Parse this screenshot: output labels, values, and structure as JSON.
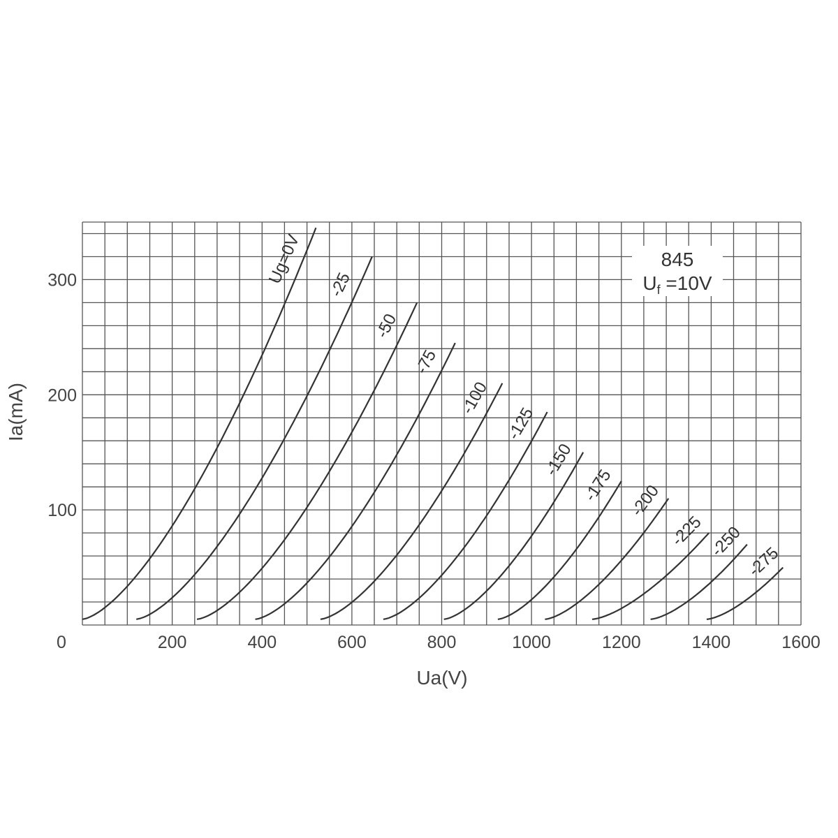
{
  "chart_data": {
    "type": "line",
    "title": "",
    "xlabel": "Ua(V)",
    "ylabel": "Ia(mA)",
    "xlim": [
      0,
      1600
    ],
    "ylim": [
      0,
      350
    ],
    "grid": true,
    "x_ticks": [
      "0",
      "200",
      "400",
      "600",
      "800",
      "1000",
      "1200",
      "1400",
      "1600"
    ],
    "y_ticks": [
      "100",
      "200",
      "300"
    ],
    "annotation": {
      "tube": "845",
      "filament_prefix": "U",
      "filament_sub": "f",
      "filament_value": " =10V"
    },
    "series": [
      {
        "name": "Ug=0V",
        "x0": 0,
        "x1": 520,
        "y1": 345
      },
      {
        "name": "-25",
        "x0": 120,
        "x1": 645,
        "y1": 320
      },
      {
        "name": "-50",
        "x0": 255,
        "x1": 745,
        "y1": 280
      },
      {
        "name": "-75",
        "x0": 385,
        "x1": 830,
        "y1": 245
      },
      {
        "name": "-100",
        "x0": 530,
        "x1": 935,
        "y1": 210
      },
      {
        "name": "-125",
        "x0": 670,
        "x1": 1035,
        "y1": 185
      },
      {
        "name": "-150",
        "x0": 805,
        "x1": 1115,
        "y1": 150
      },
      {
        "name": "-175",
        "x0": 925,
        "x1": 1200,
        "y1": 125
      },
      {
        "name": "-200",
        "x0": 1030,
        "x1": 1305,
        "y1": 110
      },
      {
        "name": "-225",
        "x0": 1135,
        "x1": 1395,
        "y1": 80
      },
      {
        "name": "-250",
        "x0": 1265,
        "x1": 1480,
        "y1": 70
      },
      {
        "name": "-275",
        "x0": 1390,
        "x1": 1560,
        "y1": 50
      }
    ]
  }
}
